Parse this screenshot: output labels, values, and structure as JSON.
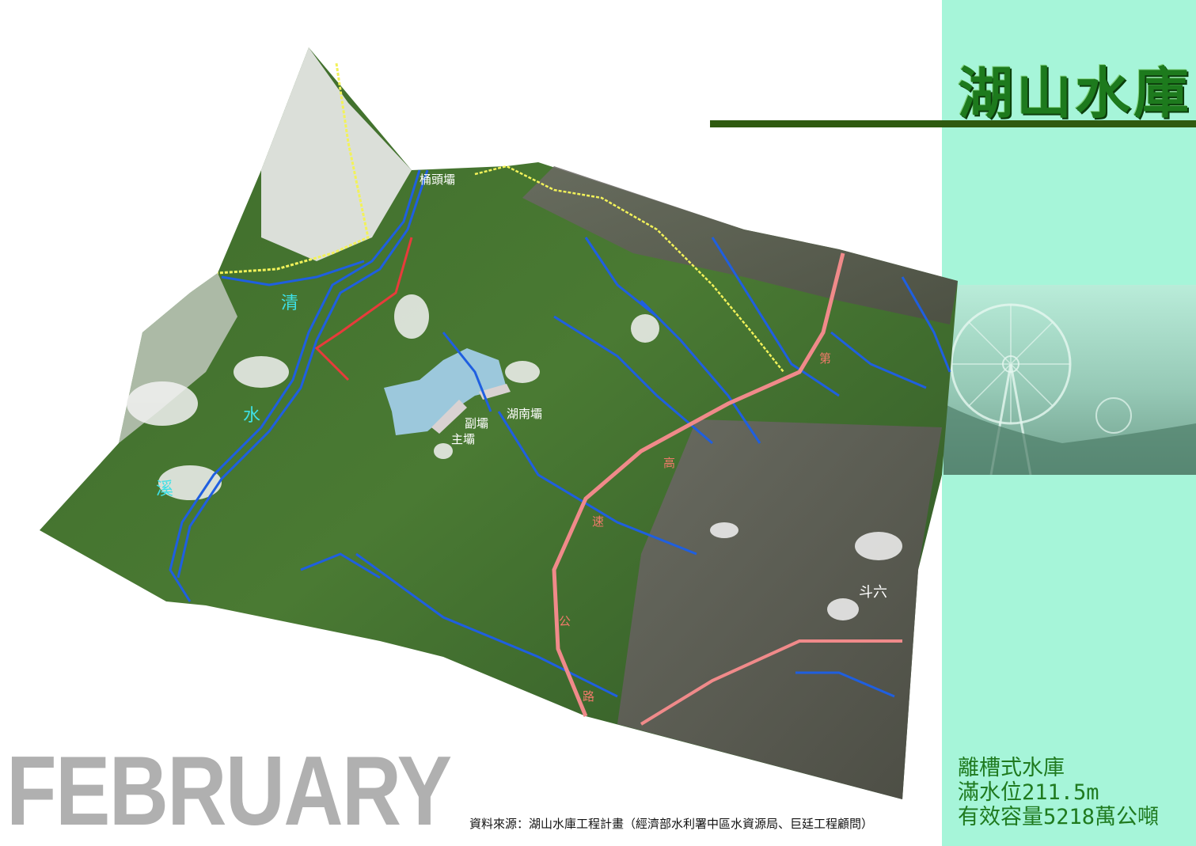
{
  "title": "湖山水庫",
  "info": {
    "line1": "離槽式水庫",
    "line2": "滿水位211.5m",
    "line3": "有效容量5218萬公噸"
  },
  "month": "FEBRUARY",
  "source": "資料來源：湖山水庫工程計畫（經濟部水利署中區水資源局、巨廷工程顧問）",
  "map_labels": {
    "tongtou_dam": "桶頭壩",
    "hunan_dam": "湖南壩",
    "fu_dam": "副壩",
    "zhu_dam": "主壩",
    "douliu": "斗六",
    "river_qing": "清",
    "river_shui": "水",
    "river_xi": "溪",
    "hwy_di": "第",
    "hwy_gao": "高",
    "hwy_su": "速",
    "hwy_gong": "公",
    "hwy_lu": "路"
  },
  "colors": {
    "panel": "#a6f5d9",
    "title": "#1d7a1d",
    "rule": "#2f5a10",
    "river": "#1f5fe0",
    "highway": "#f08a8a",
    "trail": "#f2f25a",
    "reservoir": "#9cc8dc"
  }
}
